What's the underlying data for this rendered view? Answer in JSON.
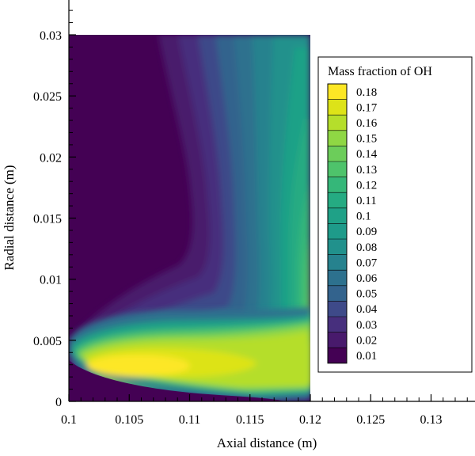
{
  "chart_data": {
    "type": "heatmap",
    "title": "",
    "xlabel": "Axial distance (m)",
    "ylabel": "Radial distance (m)",
    "xlim": [
      0.1,
      0.134
    ],
    "ylim": [
      0,
      0.0325
    ],
    "domain_x": [
      0.1,
      0.12
    ],
    "domain_y": [
      0,
      0.03
    ],
    "x_ticks": [
      "0.1",
      "0.105",
      "0.11",
      "0.115",
      "0.12",
      "0.125",
      "0.13"
    ],
    "y_ticks": [
      "0",
      "0.005",
      "0.01",
      "0.015",
      "0.02",
      "0.025",
      "0.03"
    ],
    "legend_position": "right",
    "colorbar": {
      "title": "Mass fraction of OH",
      "levels": [
        "0.18",
        "0.17",
        "0.16",
        "0.15",
        "0.14",
        "0.13",
        "0.12",
        "0.11",
        "0.1",
        "0.09",
        "0.08",
        "0.07",
        "0.06",
        "0.05",
        "0.04",
        "0.03",
        "0.02",
        "0.01"
      ],
      "colors": [
        "#fde725",
        "#dde318",
        "#b5de2b",
        "#8fd744",
        "#6ccd5a",
        "#4ec36b",
        "#35b779",
        "#25ab82",
        "#1fa187",
        "#1e9b8a",
        "#21918c",
        "#26828e",
        "#2d718e",
        "#33638d",
        "#3e4a89",
        "#472f7d",
        "#481a6c",
        "#440154"
      ]
    },
    "features": [
      {
        "description": "peak region",
        "x": 0.104,
        "y": 0.0028,
        "value": 0.18
      }
    ]
  }
}
